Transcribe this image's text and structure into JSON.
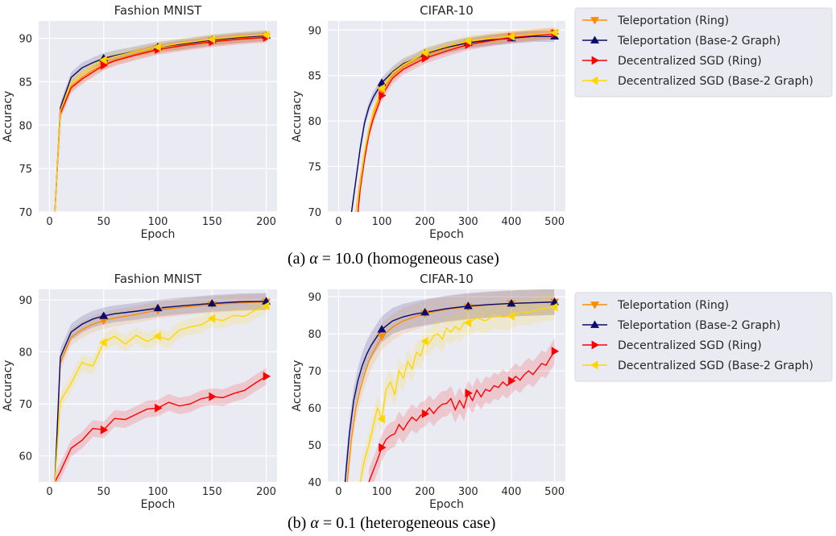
{
  "captions": [
    {
      "prefix": "(a) ",
      "symbol": "α",
      "text": " = 10.0 (homogeneous case)"
    },
    {
      "prefix": "(b) ",
      "symbol": "α",
      "text": " = 0.1 (heterogeneous case)"
    }
  ],
  "series_styles": [
    {
      "name": "Teleportation (Ring)",
      "color": "#ff8c00",
      "marker": "triangle-down"
    },
    {
      "name": "Teleportation (Base-2 Graph)",
      "color": "#0a0a6e",
      "marker": "triangle-up"
    },
    {
      "name": "Decentralized SGD (Ring)",
      "color": "#ff0000",
      "marker": "triangle-right"
    },
    {
      "name": "Decentralized SGD (Base-2 Graph)",
      "color": "#ffd700",
      "marker": "triangle-left"
    }
  ],
  "legend_entries": [
    "Teleportation (Ring)",
    "Teleportation (Base-2 Graph)",
    "Decentralized SGD (Ring)",
    "Decentralized SGD (Base-2 Graph)"
  ],
  "chart_data": [
    {
      "type": "line",
      "title": "Fashion MNIST",
      "xlabel": "Epoch",
      "ylabel": "Accuracy",
      "xlim": [
        -10,
        210
      ],
      "ylim": [
        70,
        92
      ],
      "xticks": [
        0,
        50,
        100,
        150,
        200
      ],
      "yticks": [
        70,
        75,
        80,
        85,
        90
      ],
      "grid": true,
      "legend": "none",
      "series": [
        {
          "name": "Teleportation (Ring)",
          "x": [
            5,
            10,
            20,
            30,
            40,
            50,
            60,
            80,
            100,
            120,
            150,
            175,
            200
          ],
          "y": [
            70,
            81.5,
            84.5,
            85.5,
            86.3,
            87,
            87.5,
            88.2,
            88.8,
            89.2,
            89.7,
            90.0,
            90.2
          ],
          "markers_x": [
            50,
            100,
            150,
            200
          ]
        },
        {
          "name": "Teleportation (Base-2 Graph)",
          "x": [
            5,
            10,
            20,
            30,
            40,
            50,
            60,
            80,
            100,
            120,
            150,
            175,
            200
          ],
          "y": [
            70,
            82,
            85.5,
            86.6,
            87.2,
            87.7,
            88.0,
            88.5,
            89.0,
            89.3,
            89.8,
            90.1,
            90.3
          ],
          "markers_x": [
            50,
            100,
            150,
            200
          ]
        },
        {
          "name": "Decentralized SGD (Ring)",
          "x": [
            5,
            10,
            20,
            30,
            40,
            50,
            60,
            80,
            100,
            120,
            150,
            175,
            200
          ],
          "y": [
            70,
            81.3,
            84.3,
            85.3,
            86.1,
            86.9,
            87.4,
            88.1,
            88.7,
            89.1,
            89.6,
            89.9,
            90.1
          ],
          "markers_x": [
            50,
            100,
            150,
            200
          ]
        },
        {
          "name": "Decentralized SGD (Base-2 Graph)",
          "x": [
            5,
            10,
            20,
            30,
            40,
            50,
            60,
            80,
            100,
            120,
            150,
            175,
            200
          ],
          "y": [
            70,
            81.7,
            84.8,
            86.0,
            86.8,
            87.5,
            87.9,
            88.5,
            89.0,
            89.4,
            89.9,
            90.2,
            90.4
          ],
          "markers_x": [
            50,
            100,
            150,
            200
          ]
        }
      ]
    },
    {
      "type": "line",
      "title": "CIFAR-10",
      "xlabel": "Epoch",
      "ylabel": "Accuracy",
      "xlim": [
        -25,
        525
      ],
      "ylim": [
        70,
        91
      ],
      "xticks": [
        0,
        100,
        200,
        300,
        400,
        500
      ],
      "yticks": [
        70,
        75,
        80,
        85,
        90
      ],
      "grid": true,
      "legend": "right",
      "series": [
        {
          "name": "Teleportation (Ring)",
          "x": [
            40,
            50,
            60,
            70,
            80,
            100,
            125,
            150,
            175,
            200,
            250,
            300,
            350,
            400,
            450,
            500
          ],
          "y": [
            70,
            73.5,
            76.5,
            79,
            80.8,
            83.3,
            85.0,
            86.0,
            86.6,
            87.2,
            88.0,
            88.6,
            89.0,
            89.3,
            89.5,
            89.7
          ],
          "markers_x": [
            100,
            200,
            300,
            400,
            500
          ]
        },
        {
          "name": "Teleportation (Base-2 Graph)",
          "x": [
            30,
            40,
            50,
            60,
            70,
            80,
            100,
            125,
            150,
            175,
            200,
            250,
            300,
            350,
            400,
            450,
            500
          ],
          "y": [
            70,
            73.5,
            77,
            79.8,
            81.5,
            82.6,
            84.2,
            85.4,
            86.3,
            86.8,
            87.4,
            88.1,
            88.6,
            88.9,
            89.1,
            89.3,
            89.3
          ],
          "markers_x": [
            100,
            200,
            300,
            400,
            500
          ]
        },
        {
          "name": "Decentralized SGD (Ring)",
          "x": [
            45,
            50,
            60,
            70,
            80,
            100,
            125,
            150,
            175,
            200,
            250,
            300,
            350,
            400,
            450,
            500
          ],
          "y": [
            70,
            72.5,
            75.8,
            78.5,
            80.2,
            82.8,
            84.7,
            85.7,
            86.3,
            86.9,
            87.7,
            88.4,
            88.8,
            89.2,
            89.4,
            89.6
          ],
          "markers_x": [
            100,
            200,
            300,
            400,
            500
          ]
        },
        {
          "name": "Decentralized SGD (Base-2 Graph)",
          "x": [
            40,
            50,
            60,
            70,
            80,
            100,
            125,
            150,
            175,
            200,
            250,
            300,
            350,
            400,
            450,
            500
          ],
          "y": [
            70,
            73.2,
            76.5,
            79,
            81,
            83.6,
            85.3,
            86.2,
            86.8,
            87.5,
            88.2,
            88.8,
            89.1,
            89.3,
            89.5,
            89.7
          ],
          "markers_x": [
            100,
            200,
            300,
            400,
            500
          ]
        }
      ]
    },
    {
      "type": "line",
      "title": "Fashion MNIST",
      "xlabel": "Epoch",
      "ylabel": "Accuracy",
      "xlim": [
        -10,
        210
      ],
      "ylim": [
        55,
        92
      ],
      "xticks": [
        0,
        50,
        100,
        150,
        200
      ],
      "yticks": [
        60,
        70,
        80,
        90
      ],
      "grid": true,
      "legend": "none",
      "series": [
        {
          "name": "Teleportation (Ring)",
          "x": [
            5,
            10,
            20,
            30,
            40,
            50,
            60,
            80,
            100,
            120,
            150,
            175,
            200
          ],
          "y": [
            55,
            78,
            82.8,
            84.3,
            85.3,
            86.0,
            86.5,
            87.2,
            88.0,
            88.5,
            89.1,
            89.4,
            89.6
          ],
          "markers_x": [
            50,
            100,
            150,
            200
          ]
        },
        {
          "name": "Teleportation (Base-2 Graph)",
          "x": [
            5,
            10,
            20,
            30,
            40,
            50,
            60,
            80,
            100,
            120,
            150,
            175,
            200
          ],
          "y": [
            55,
            79,
            83.8,
            85.3,
            86.3,
            86.9,
            87.3,
            87.8,
            88.4,
            88.8,
            89.3,
            89.6,
            89.7
          ],
          "markers_x": [
            50,
            100,
            150,
            200
          ]
        },
        {
          "name": "Decentralized SGD (Ring)",
          "x": [
            5,
            10,
            20,
            30,
            40,
            50,
            60,
            70,
            80,
            90,
            100,
            110,
            120,
            130,
            140,
            150,
            160,
            170,
            180,
            190,
            200
          ],
          "y": [
            55,
            57,
            61.5,
            63.0,
            65.3,
            65.0,
            67.2,
            67.0,
            68.0,
            69.0,
            69.2,
            70.3,
            69.6,
            70.0,
            71.0,
            71.4,
            71.2,
            72.0,
            72.6,
            74.0,
            75.3
          ],
          "markers_x": [
            50,
            100,
            150,
            200
          ]
        },
        {
          "name": "Decentralized SGD (Base-2 Graph)",
          "x": [
            5,
            10,
            20,
            30,
            35,
            40,
            50,
            60,
            70,
            80,
            90,
            100,
            110,
            120,
            130,
            140,
            150,
            160,
            170,
            180,
            190,
            200
          ],
          "y": [
            55,
            70.5,
            74.0,
            78.0,
            77.5,
            77.3,
            81.8,
            83.0,
            81.5,
            83.2,
            82.0,
            83.0,
            82.3,
            84.2,
            84.8,
            85.2,
            86.4,
            86.0,
            87.0,
            86.8,
            88.0,
            88.8
          ],
          "markers_x": [
            50,
            100,
            150,
            200
          ]
        }
      ]
    },
    {
      "type": "line",
      "title": "CIFAR-10",
      "xlabel": "Epoch",
      "ylabel": "Accuracy",
      "xlim": [
        -25,
        525
      ],
      "ylim": [
        40,
        92
      ],
      "xticks": [
        0,
        100,
        200,
        300,
        400,
        500
      ],
      "yticks": [
        40,
        50,
        60,
        70,
        80,
        90
      ],
      "grid": true,
      "legend": "right",
      "series": [
        {
          "name": "Teleportation (Ring)",
          "x": [
            20,
            30,
            40,
            50,
            60,
            70,
            80,
            100,
            125,
            150,
            175,
            200,
            250,
            300,
            350,
            400,
            450,
            500
          ],
          "y": [
            40,
            52,
            60,
            65,
            69,
            72.5,
            75,
            79.3,
            81.8,
            83.5,
            84.5,
            85.5,
            86.6,
            87.3,
            87.8,
            88.2,
            88.4,
            88.6
          ],
          "markers_x": [
            100,
            200,
            300,
            400,
            500
          ]
        },
        {
          "name": "Teleportation (Base-2 Graph)",
          "x": [
            15,
            25,
            35,
            45,
            55,
            65,
            75,
            100,
            125,
            150,
            175,
            200,
            250,
            300,
            350,
            400,
            450,
            500
          ],
          "y": [
            40,
            53,
            62,
            67.5,
            71.5,
            74.5,
            76.8,
            81.2,
            83.5,
            84.6,
            85.3,
            85.8,
            86.8,
            87.5,
            87.9,
            88.2,
            88.4,
            88.6
          ],
          "markers_x": [
            100,
            200,
            300,
            400,
            500
          ]
        },
        {
          "name": "Decentralized SGD (Ring)",
          "x": [
            70,
            80,
            90,
            100,
            110,
            120,
            130,
            140,
            150,
            160,
            170,
            180,
            190,
            200,
            210,
            220,
            230,
            240,
            250,
            260,
            270,
            280,
            290,
            300,
            310,
            320,
            330,
            340,
            350,
            360,
            370,
            380,
            390,
            400,
            410,
            420,
            430,
            440,
            450,
            460,
            470,
            480,
            490,
            500
          ],
          "y": [
            40,
            43,
            46,
            49.3,
            51.5,
            52.5,
            53,
            55.5,
            54,
            56,
            57.5,
            56.5,
            58,
            58.4,
            60,
            58.5,
            60,
            61,
            61.2,
            62.5,
            59.5,
            62,
            60,
            64,
            62,
            64.8,
            63,
            65,
            64.5,
            66,
            65.5,
            67,
            66,
            67.3,
            68.5,
            67.5,
            69,
            70,
            69,
            70.5,
            72,
            71.5,
            73.5,
            75.3
          ],
          "markers_x": [
            100,
            200,
            300,
            400,
            500
          ]
        },
        {
          "name": "Decentralized SGD (Base-2 Graph)",
          "x": [
            50,
            60,
            70,
            80,
            90,
            100,
            110,
            120,
            130,
            140,
            150,
            160,
            170,
            180,
            190,
            200,
            210,
            220,
            230,
            240,
            250,
            260,
            270,
            280,
            290,
            300,
            320,
            340,
            360,
            380,
            400,
            420,
            440,
            460,
            480,
            500
          ],
          "y": [
            40,
            46,
            50,
            55,
            60,
            57,
            65,
            67,
            63.5,
            70,
            68,
            72.5,
            70.5,
            75,
            74,
            78,
            77.5,
            79.5,
            80,
            78.5,
            81.5,
            80.5,
            82,
            81,
            83,
            83,
            84.3,
            83.5,
            85,
            84.5,
            84.8,
            86,
            85.8,
            86.5,
            87,
            87.2
          ],
          "markers_x": [
            100,
            200,
            300,
            400,
            500
          ]
        }
      ]
    }
  ]
}
